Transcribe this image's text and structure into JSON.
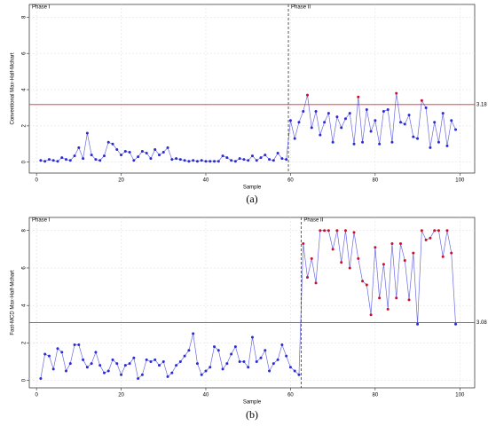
{
  "chart_data": [
    {
      "type": "line",
      "caption": "(a)",
      "xlabel": "Sample",
      "ylabel": "Conventional Max-Half-Mchart",
      "xlim": [
        -1.7,
        103.5
      ],
      "ylim": [
        -0.6,
        8.7
      ],
      "xticks": [
        0,
        20,
        40,
        60,
        80,
        100
      ],
      "yticks": [
        0,
        2,
        4,
        6,
        8
      ],
      "grid": true,
      "phase_labels": [
        "Phase I",
        "Phase II"
      ],
      "phase_boundary": 59.5,
      "control_limit": 3.18,
      "limit_color": "#e8262b",
      "color": "#2b2bd6",
      "out_color": "#c8102e",
      "x": [
        1,
        2,
        3,
        4,
        5,
        6,
        7,
        8,
        9,
        10,
        11,
        12,
        13,
        14,
        15,
        16,
        17,
        18,
        19,
        20,
        21,
        22,
        23,
        24,
        25,
        26,
        27,
        28,
        29,
        30,
        31,
        32,
        33,
        34,
        35,
        36,
        37,
        38,
        39,
        40,
        41,
        42,
        43,
        44,
        45,
        46,
        47,
        48,
        49,
        50,
        51,
        52,
        53,
        54,
        55,
        56,
        57,
        58,
        59,
        60,
        61,
        62,
        63,
        64,
        65,
        66,
        67,
        68,
        69,
        70,
        71,
        72,
        73,
        74,
        75,
        76,
        77,
        78,
        79,
        80,
        81,
        82,
        83,
        84,
        85,
        86,
        87,
        88,
        89,
        90,
        91,
        92,
        93,
        94,
        95,
        96,
        97,
        98,
        99
      ],
      "values": [
        0.1,
        0.05,
        0.15,
        0.1,
        0.05,
        0.25,
        0.15,
        0.1,
        0.35,
        0.8,
        0.2,
        1.6,
        0.4,
        0.15,
        0.1,
        0.35,
        1.1,
        1.0,
        0.7,
        0.4,
        0.6,
        0.55,
        0.1,
        0.3,
        0.6,
        0.5,
        0.2,
        0.7,
        0.4,
        0.55,
        0.8,
        0.15,
        0.2,
        0.15,
        0.1,
        0.05,
        0.1,
        0.05,
        0.1,
        0.05,
        0.05,
        0.05,
        0.05,
        0.35,
        0.25,
        0.1,
        0.05,
        0.2,
        0.15,
        0.1,
        0.35,
        0.1,
        0.25,
        0.4,
        0.15,
        0.1,
        0.5,
        0.2,
        0.15,
        2.3,
        1.3,
        2.2,
        2.8,
        3.7,
        1.9,
        2.8,
        1.5,
        2.2,
        2.7,
        1.1,
        2.5,
        1.9,
        2.4,
        2.7,
        1.0,
        3.6,
        1.1,
        2.9,
        1.7,
        2.3,
        1.0,
        2.8,
        2.9,
        1.1,
        3.8,
        2.2,
        2.1,
        2.6,
        1.4,
        1.3,
        3.4,
        3.0,
        0.8,
        2.2,
        1.1,
        2.7,
        0.9,
        2.3,
        1.8
      ]
    },
    {
      "type": "line",
      "caption": "(b)",
      "xlabel": "Sample",
      "ylabel": "Fast-MCD Max-Half-Mchart",
      "xlim": [
        -1.7,
        103.5
      ],
      "ylim": [
        -0.4,
        8.7
      ],
      "xticks": [
        0,
        20,
        40,
        60,
        80,
        100
      ],
      "yticks": [
        0,
        2,
        4,
        6,
        8
      ],
      "grid": true,
      "phase_labels": [
        "Phase I",
        "Phase II"
      ],
      "phase_boundary": 62.5,
      "control_limit": 3.08,
      "limit_color": "#e8262b",
      "color": "#2b2bd6",
      "out_color": "#c8102e",
      "x": [
        1,
        2,
        3,
        4,
        5,
        6,
        7,
        8,
        9,
        10,
        11,
        12,
        13,
        14,
        15,
        16,
        17,
        18,
        19,
        20,
        21,
        22,
        23,
        24,
        25,
        26,
        27,
        28,
        29,
        30,
        31,
        32,
        33,
        34,
        35,
        36,
        37,
        38,
        39,
        40,
        41,
        42,
        43,
        44,
        45,
        46,
        47,
        48,
        49,
        50,
        51,
        52,
        53,
        54,
        55,
        56,
        57,
        58,
        59,
        60,
        61,
        62,
        63,
        64,
        65,
        66,
        67,
        68,
        69,
        70,
        71,
        72,
        73,
        74,
        75,
        76,
        77,
        78,
        79,
        80,
        81,
        82,
        83,
        84,
        85,
        86,
        87,
        88,
        89,
        90,
        91,
        92,
        93,
        94,
        95,
        96,
        97,
        98,
        99
      ],
      "values": [
        0.1,
        1.4,
        1.3,
        0.6,
        1.7,
        1.5,
        0.5,
        0.9,
        1.9,
        1.9,
        1.1,
        0.7,
        0.9,
        1.5,
        0.8,
        0.4,
        0.5,
        1.1,
        0.9,
        0.3,
        0.8,
        0.9,
        1.2,
        0.1,
        0.3,
        1.1,
        1.0,
        1.1,
        0.8,
        1.0,
        0.2,
        0.4,
        0.8,
        1.0,
        1.3,
        1.6,
        2.5,
        0.9,
        0.3,
        0.5,
        0.7,
        1.8,
        1.6,
        0.6,
        0.9,
        1.4,
        1.8,
        1.0,
        1.0,
        0.7,
        2.3,
        1.0,
        1.2,
        1.6,
        0.5,
        0.9,
        1.1,
        1.9,
        1.3,
        0.7,
        0.5,
        0.3,
        7.3,
        5.5,
        6.5,
        5.2,
        8.0,
        8.0,
        8.0,
        7.0,
        8.0,
        6.3,
        8.0,
        6.0,
        7.9,
        6.5,
        5.3,
        5.1,
        3.5,
        7.1,
        4.4,
        6.2,
        3.8,
        7.3,
        4.4,
        7.3,
        6.4,
        4.3,
        6.8,
        3.0,
        8.0,
        7.5,
        7.6,
        8.0,
        8.0,
        6.6,
        8.0,
        6.8,
        3.0
      ]
    }
  ]
}
